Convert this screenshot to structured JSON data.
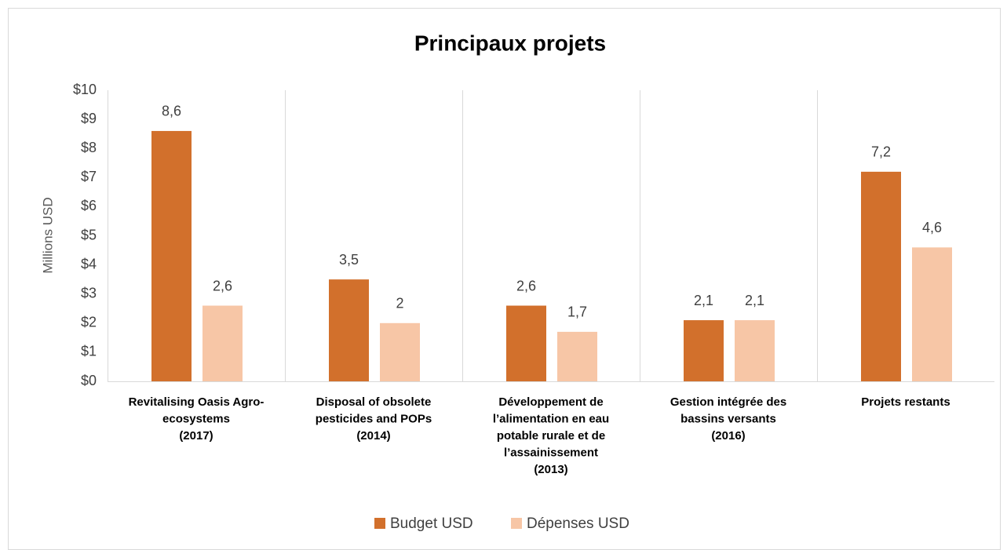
{
  "chart_data": {
    "type": "bar",
    "title": "Principaux projets",
    "y_label": "Millions USD",
    "categories": [
      [
        "Revitalising Oasis Agro-",
        "ecosystems",
        "(2017)"
      ],
      [
        "Disposal of obsolete",
        "pesticides and POPs",
        "(2014)"
      ],
      [
        "Développement de",
        "l’alimentation en eau",
        "potable rurale et de",
        "l’assainissement",
        "(2013)"
      ],
      [
        "Gestion intégrée des",
        "bassins versants",
        "(2016)"
      ],
      [
        "Projets restants"
      ]
    ],
    "series": [
      {
        "name": "Budget USD",
        "color": "#d2702c",
        "values": [
          8.6,
          3.5,
          2.6,
          2.1,
          7.2
        ],
        "value_labels": [
          "8,6",
          "3,5",
          "2,6",
          "2,1",
          "7,2"
        ]
      },
      {
        "name": "Dépenses USD",
        "color": "#f7c6a6",
        "values": [
          2.6,
          2,
          1.7,
          2.1,
          4.6
        ],
        "value_labels": [
          "2,6",
          "2",
          "1,7",
          "2,1",
          "4,6"
        ]
      }
    ],
    "ylim": [
      0,
      10
    ],
    "yticks": [
      {
        "value": 0,
        "label": "$0"
      },
      {
        "value": 1,
        "label": "$1"
      },
      {
        "value": 2,
        "label": "$2"
      },
      {
        "value": 3,
        "label": "$3"
      },
      {
        "value": 4,
        "label": "$4"
      },
      {
        "value": 5,
        "label": "$5"
      },
      {
        "value": 6,
        "label": "$6"
      },
      {
        "value": 7,
        "label": "$7"
      },
      {
        "value": 8,
        "label": "$8"
      },
      {
        "value": 9,
        "label": "$9"
      },
      {
        "value": 10,
        "label": "$10"
      }
    ],
    "legend": "bottom"
  }
}
